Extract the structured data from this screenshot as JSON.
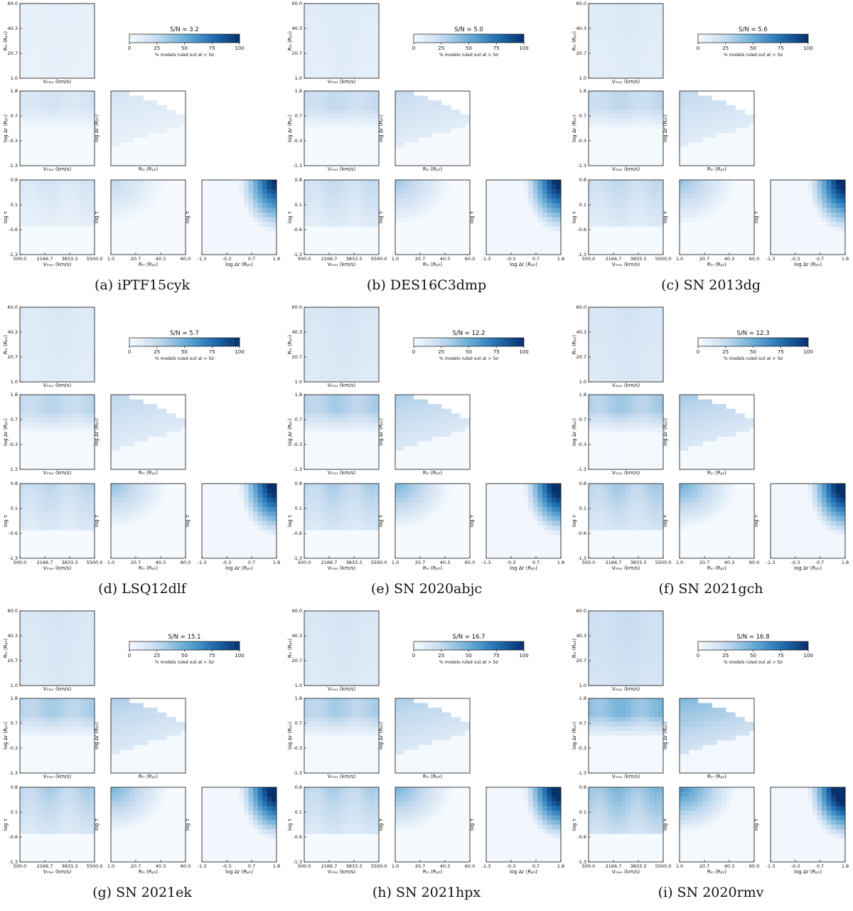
{
  "figure": {
    "colorbar": {
      "ticks": [
        "0",
        "25",
        "50",
        "75",
        "100"
      ],
      "label": "% models ruled out at > 5σ"
    },
    "axes": {
      "vmax": {
        "label": "Vₘₐₓ (km/s)",
        "ticks": [
          "500.0",
          "2166.7",
          "3833.3",
          "5500.0"
        ]
      },
      "rin": {
        "label": "Rᵢₙ (Rₚₕ)",
        "ticks": [
          "1.0",
          "20.7",
          "40.3",
          "60.0"
        ]
      },
      "dr": {
        "label": "log Δr (Rₚₕ)",
        "ticks": [
          "-1.3",
          "-0.3",
          "0.7",
          "1.8"
        ]
      },
      "tau": {
        "label": "log τ",
        "ticks": [
          "-1.3",
          "-0.6",
          "0.1",
          "0.8"
        ]
      }
    }
  },
  "chart_data": [
    {
      "type": "heatmap",
      "caption": "(a) iPTF15cyk",
      "sn_label": "S/N = 3.2",
      "sn": 3.2,
      "intensity": 0.3
    },
    {
      "type": "heatmap",
      "caption": "(b) DES16C3dmp",
      "sn_label": "S/N = 5.0",
      "sn": 5.0,
      "intensity": 0.42
    },
    {
      "type": "heatmap",
      "caption": "(c) SN 2013dg",
      "sn_label": "S/N = 5.6",
      "sn": 5.6,
      "intensity": 0.45
    },
    {
      "type": "heatmap",
      "caption": "(d) LSQ12dlf",
      "sn_label": "S/N = 5.7",
      "sn": 5.7,
      "intensity": 0.47
    },
    {
      "type": "heatmap",
      "caption": "(e) SN 2020abjc",
      "sn_label": "S/N = 12.2",
      "sn": 12.2,
      "intensity": 0.55
    },
    {
      "type": "heatmap",
      "caption": "(f) SN 2021gch",
      "sn_label": "S/N = 12.3",
      "sn": 12.3,
      "intensity": 0.58
    },
    {
      "type": "heatmap",
      "caption": "(g) SN 2021ek",
      "sn_label": "S/N = 15.1",
      "sn": 15.1,
      "intensity": 0.55
    },
    {
      "type": "heatmap",
      "caption": "(h) SN 2021hpx",
      "sn_label": "S/N = 16.7",
      "sn": 16.7,
      "intensity": 0.55
    },
    {
      "type": "heatmap",
      "caption": "(i) SN 2020rmv",
      "sn_label": "S/N = 16.8",
      "sn": 16.8,
      "intensity": 0.75
    }
  ]
}
